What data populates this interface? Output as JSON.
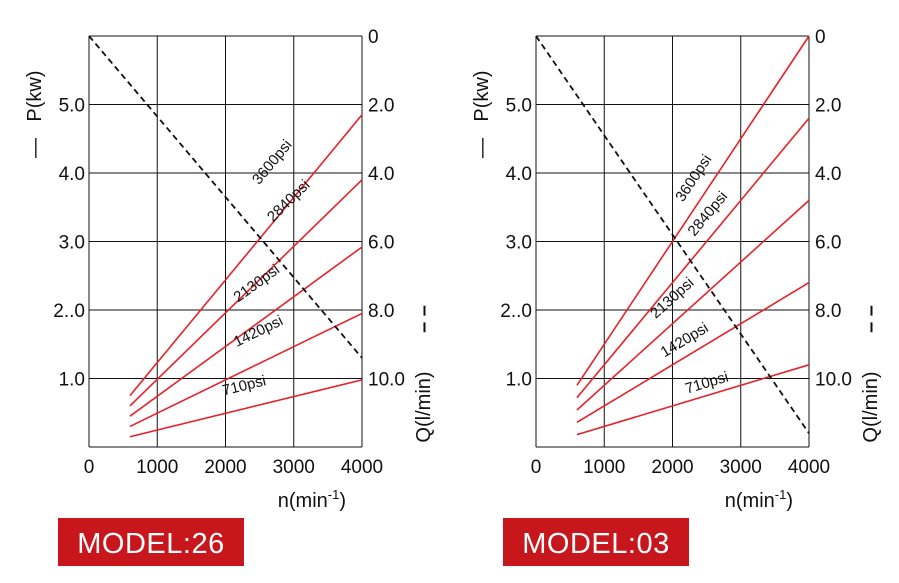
{
  "colors": {
    "power": "#e8202a",
    "flow": "#111111",
    "badge": "#c8161d"
  },
  "chart_data": [
    {
      "type": "line",
      "model_label": "MODEL:26",
      "xlabel": "n(min",
      "xlabel_sup": "-1",
      "xlabel_close": ")",
      "ylabel_left": "P(kw)",
      "ylabel_left_marker": "—",
      "ylabel_right": "Q(l/min)",
      "ylabel_right_marker": "– –",
      "xlim": [
        0,
        4000
      ],
      "x_ticks": [
        "0",
        "1000",
        "2000",
        "3000",
        "4000"
      ],
      "ylim_left": [
        0,
        6
      ],
      "y_ticks_left": [
        "1.0",
        "2..0",
        "3.0",
        "4.0",
        "5.0"
      ],
      "ylim_right": [
        0,
        12
      ],
      "y_ticks_right": [
        "0",
        "2.0",
        "4.0",
        "6.0",
        "8.0",
        "10.0"
      ],
      "grid": true,
      "series": [
        {
          "name": "3600psi",
          "x": [
            600,
            4000
          ],
          "y": [
            0.75,
            4.85
          ]
        },
        {
          "name": "2840psi",
          "x": [
            600,
            4000
          ],
          "y": [
            0.6,
            3.9
          ]
        },
        {
          "name": "2130psi",
          "x": [
            600,
            4000
          ],
          "y": [
            0.45,
            2.92
          ]
        },
        {
          "name": "1420psi",
          "x": [
            600,
            4000
          ],
          "y": [
            0.3,
            1.95
          ]
        },
        {
          "name": "710psi",
          "x": [
            600,
            4000
          ],
          "y": [
            0.15,
            0.98
          ]
        }
      ],
      "flow_series": {
        "x": [
          0,
          4000
        ],
        "q": [
          0,
          9.4
        ]
      }
    },
    {
      "type": "line",
      "model_label": "MODEL:03",
      "xlabel": "n(min",
      "xlabel_sup": "-1",
      "xlabel_close": ")",
      "ylabel_left": "P(kw)",
      "ylabel_left_marker": "—",
      "ylabel_right": "Q(l/min)",
      "ylabel_right_marker": "– –",
      "xlim": [
        0,
        4000
      ],
      "x_ticks": [
        "0",
        "1000",
        "2000",
        "3000",
        "4000"
      ],
      "ylim_left": [
        0,
        6
      ],
      "y_ticks_left": [
        "1.0",
        "2..0",
        "3.0",
        "4.0",
        "5.0"
      ],
      "ylim_right": [
        0,
        12
      ],
      "y_ticks_right": [
        "0",
        "2.0",
        "4.0",
        "6.0",
        "8.0",
        "10.0"
      ],
      "grid": true,
      "series": [
        {
          "name": "3600psi",
          "x": [
            600,
            4000
          ],
          "y": [
            0.9,
            6.0
          ]
        },
        {
          "name": "2840psi",
          "x": [
            600,
            4000
          ],
          "y": [
            0.72,
            4.8
          ]
        },
        {
          "name": "2130psi",
          "x": [
            600,
            4000
          ],
          "y": [
            0.54,
            3.6
          ]
        },
        {
          "name": "1420psi",
          "x": [
            600,
            4000
          ],
          "y": [
            0.36,
            2.4
          ]
        },
        {
          "name": "710psi",
          "x": [
            600,
            4000
          ],
          "y": [
            0.18,
            1.2
          ]
        }
      ],
      "flow_series": {
        "x": [
          0,
          4000
        ],
        "q": [
          0,
          11.6
        ]
      }
    }
  ]
}
